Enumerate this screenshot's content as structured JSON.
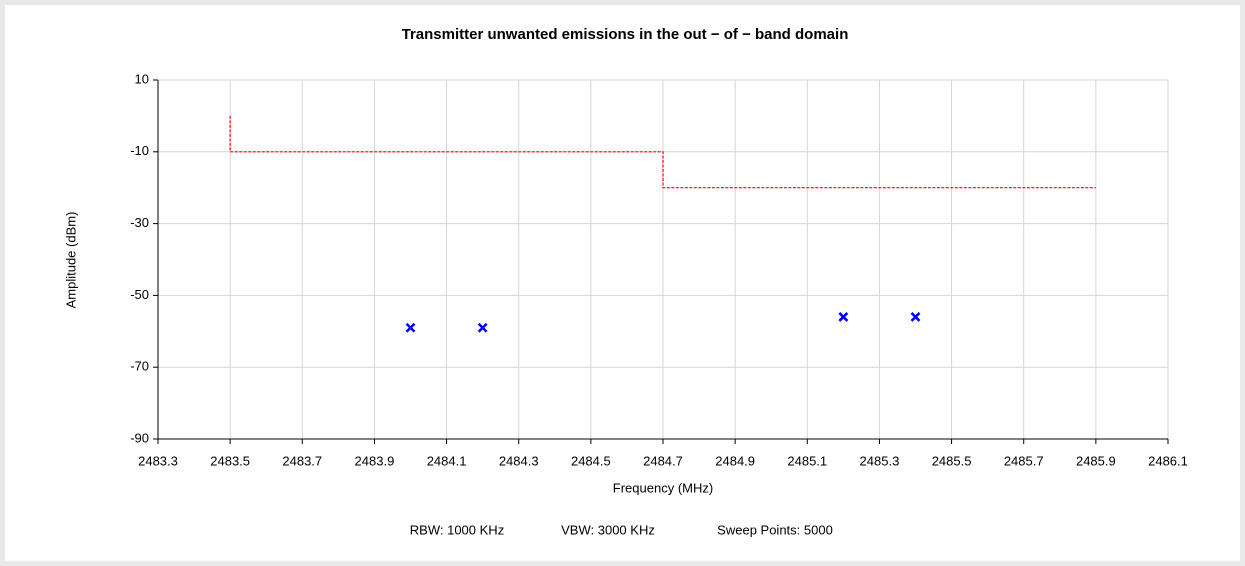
{
  "chart_data": {
    "type": "scatter",
    "title": "Transmitter unwanted emissions in the out − of − band domain",
    "x_label": "Frequency (MHz)",
    "y_label": "Amplitude (dBm)",
    "footer": [
      "RBW: 1000 KHz",
      "VBW: 3000 KHz",
      "Sweep Points: 5000"
    ],
    "xlim": [
      2483.3,
      2486.1
    ],
    "xticks": [
      2483.3,
      2483.5,
      2483.7,
      2483.9,
      2484.1,
      2484.3,
      2484.5,
      2484.7,
      2484.9,
      2485.1,
      2485.3,
      2485.5,
      2485.7,
      2485.9,
      2486.1
    ],
    "ylim": [
      -90,
      10
    ],
    "yticks": [
      10,
      -10,
      -30,
      -50,
      -70,
      -90
    ],
    "grid": true,
    "series": [
      {
        "type": "line",
        "color": "#ff0000",
        "dashed": true,
        "x": [
          2483.5,
          2483.5,
          2484.7,
          2484.7,
          2485.9
        ],
        "values": [
          0,
          -10,
          -10,
          -20,
          -20
        ]
      },
      {
        "type": "scatter",
        "color": "#0000ff",
        "marker": "x",
        "x": [
          2484.0,
          2484.2,
          2485.2,
          2485.4
        ],
        "values": [
          -59,
          -59,
          -56,
          -56
        ]
      }
    ]
  }
}
